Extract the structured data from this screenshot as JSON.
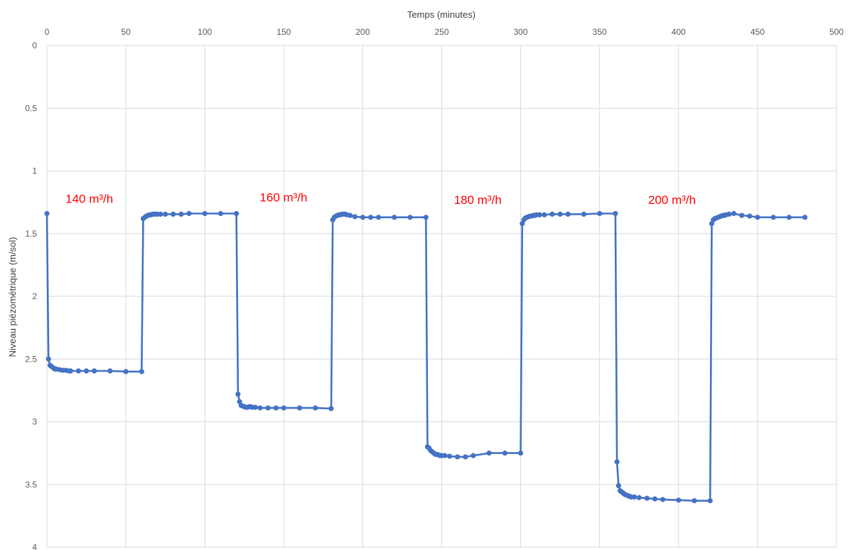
{
  "chart_data": {
    "type": "line",
    "xlabel": "Temps (minutes)",
    "ylabel": "Niveau piézométrique (m/sol)",
    "xlim": [
      0,
      500
    ],
    "ylim": [
      0,
      4
    ],
    "y_inverted": true,
    "x_axis_position": "top",
    "grid": true,
    "legend": "none",
    "series_color": "#4472c4",
    "annotation_color": "#ff0000",
    "x_ticks": [
      "0",
      "50",
      "100",
      "150",
      "200",
      "250",
      "300",
      "350",
      "400",
      "450",
      "500"
    ],
    "y_ticks": [
      "0",
      "0.5",
      "1",
      "1.5",
      "2",
      "2.5",
      "3",
      "3.5",
      "4"
    ],
    "annotations": [
      {
        "text": "140 m³/h",
        "x": 5,
        "y": 1.22
      },
      {
        "text": "160 m³/h",
        "x": 128,
        "y": 1.21
      },
      {
        "text": "180 m³/h",
        "x": 251,
        "y": 1.23
      },
      {
        "text": "200 m³/h",
        "x": 374,
        "y": 1.23
      }
    ],
    "series": [
      {
        "x": [
          0,
          1,
          2,
          3,
          4,
          5,
          6,
          8,
          10,
          12,
          14,
          15,
          20,
          25,
          30,
          40,
          50,
          60,
          61,
          62,
          63,
          64,
          65,
          66,
          67,
          68,
          69,
          70,
          72,
          75,
          80,
          85,
          90,
          100,
          110,
          120,
          121,
          122,
          123,
          124,
          125,
          126,
          127,
          128,
          129,
          130,
          132,
          135,
          140,
          145,
          150,
          160,
          170,
          180,
          181,
          182,
          183,
          184,
          185,
          186,
          187,
          188,
          189,
          190,
          192,
          195,
          200,
          205,
          210,
          220,
          230,
          240,
          241,
          242,
          243,
          244,
          245,
          246,
          247,
          248,
          249,
          250,
          252,
          255,
          260,
          265,
          270,
          280,
          290,
          300,
          301,
          302,
          303,
          304,
          305,
          306,
          307,
          308,
          309,
          310,
          312,
          315,
          320,
          325,
          330,
          340,
          350,
          360,
          361,
          362,
          363,
          364,
          365,
          366,
          367,
          368,
          369,
          370,
          372,
          375,
          380,
          385,
          390,
          400,
          410,
          420,
          421,
          422,
          423,
          424,
          425,
          426,
          427,
          428,
          429,
          430,
          432,
          435,
          440,
          445,
          450,
          460,
          470,
          480
        ],
        "y": [
          1.34,
          2.5,
          2.55,
          2.56,
          2.57,
          2.58,
          2.58,
          2.585,
          2.59,
          2.59,
          2.595,
          2.595,
          2.595,
          2.595,
          2.595,
          2.595,
          2.6,
          2.6,
          1.38,
          1.37,
          1.36,
          1.355,
          1.35,
          1.35,
          1.345,
          1.345,
          1.345,
          1.345,
          1.345,
          1.345,
          1.345,
          1.345,
          1.34,
          1.34,
          1.34,
          1.34,
          2.78,
          2.84,
          2.87,
          2.875,
          2.88,
          2.885,
          2.885,
          2.88,
          2.88,
          2.885,
          2.885,
          2.89,
          2.89,
          2.89,
          2.89,
          2.89,
          2.89,
          2.895,
          1.39,
          1.37,
          1.36,
          1.355,
          1.35,
          1.35,
          1.345,
          1.345,
          1.345,
          1.35,
          1.355,
          1.365,
          1.37,
          1.37,
          1.37,
          1.37,
          1.37,
          1.37,
          3.2,
          3.21,
          3.23,
          3.24,
          3.25,
          3.26,
          3.26,
          3.265,
          3.27,
          3.27,
          3.27,
          3.275,
          3.28,
          3.28,
          3.27,
          3.25,
          3.25,
          3.25,
          1.42,
          1.39,
          1.375,
          1.37,
          1.365,
          1.36,
          1.36,
          1.355,
          1.355,
          1.35,
          1.35,
          1.35,
          1.345,
          1.345,
          1.345,
          1.345,
          1.34,
          1.34,
          3.32,
          3.51,
          3.55,
          3.56,
          3.57,
          3.58,
          3.585,
          3.59,
          3.595,
          3.6,
          3.6,
          3.605,
          3.61,
          3.615,
          3.62,
          3.625,
          3.63,
          3.63,
          1.42,
          1.39,
          1.38,
          1.375,
          1.37,
          1.365,
          1.36,
          1.355,
          1.355,
          1.35,
          1.345,
          1.34,
          1.355,
          1.36,
          1.37,
          1.37,
          1.37,
          1.37
        ]
      }
    ]
  }
}
